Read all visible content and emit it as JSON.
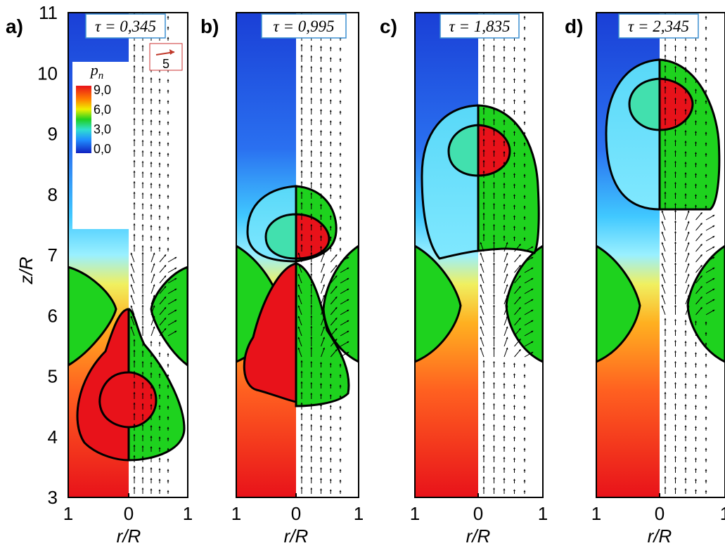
{
  "figure": {
    "y_axis_label": "z/R",
    "y_ticks": [
      "3",
      "4",
      "5",
      "6",
      "7",
      "8",
      "9",
      "10",
      "11"
    ],
    "colorbar": {
      "title": "p",
      "title_subscript": "n",
      "ticks": [
        "9,0",
        "6,0",
        "3,0",
        "0,0"
      ]
    },
    "reference_vector_label": "5",
    "panels": [
      {
        "letter": "a)",
        "tau": "τ = 0,345",
        "x_ticks": [
          "1",
          "0",
          "1"
        ],
        "x_label": "r/R"
      },
      {
        "letter": "b)",
        "tau": "τ = 0,995",
        "x_ticks": [
          "1",
          "0",
          "1"
        ],
        "x_label": "r/R"
      },
      {
        "letter": "c)",
        "tau": "τ = 1,835",
        "x_ticks": [
          "1",
          "0",
          "1"
        ],
        "x_label": "r/R"
      },
      {
        "letter": "d)",
        "tau": "τ = 2,345",
        "x_ticks": [
          "1",
          "0",
          "1"
        ],
        "x_label": "r/R"
      }
    ],
    "colors": {
      "high": "#e8121a",
      "mid": "#1ed21e",
      "low_mid": "#32e6ff",
      "low": "#1a3fd6"
    }
  }
}
